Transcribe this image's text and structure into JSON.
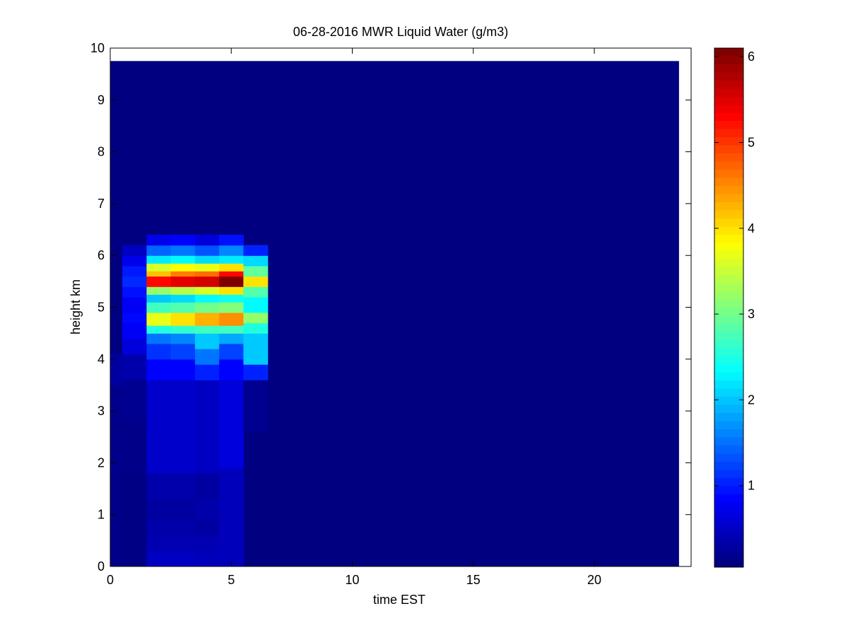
{
  "chart_data": {
    "type": "heatmap",
    "title": "06-28-2016 MWR Liquid Water (g/m3)",
    "xlabel": "time EST",
    "ylabel": "height km",
    "xlim": [
      0,
      24
    ],
    "ylim": [
      0,
      10
    ],
    "x_ticks": [
      0,
      5,
      10,
      15,
      20
    ],
    "y_ticks": [
      0,
      1,
      2,
      3,
      4,
      5,
      6,
      7,
      8,
      9,
      10
    ],
    "colormap": "jet",
    "colorbar": {
      "clim": [
        0.05,
        6.1
      ],
      "ticks": [
        1,
        2,
        3,
        4,
        5,
        6
      ]
    },
    "background_value": 0.05,
    "data_extent": {
      "x": [
        0,
        23.5
      ],
      "y": [
        0,
        9.75
      ]
    },
    "columns": [
      {
        "x": [
          0,
          0.5
        ],
        "cells": [
          {
            "y": [
              0,
              1.8
            ],
            "v": 0.1
          },
          {
            "y": [
              1.8,
              3.5
            ],
            "v": 0.12
          },
          {
            "y": [
              3.5,
              4.1
            ],
            "v": 0.25
          }
        ]
      },
      {
        "x": [
          0.5,
          1.5
        ],
        "cells": [
          {
            "y": [
              0,
              1.8
            ],
            "v": 0.08
          },
          {
            "y": [
              1.8,
              2.8
            ],
            "v": 0.1
          },
          {
            "y": [
              2.8,
              3.6
            ],
            "v": 0.15
          },
          {
            "y": [
              3.6,
              4.1
            ],
            "v": 0.3
          },
          {
            "y": [
              4.1,
              4.4
            ],
            "v": 0.6
          },
          {
            "y": [
              4.4,
              4.7
            ],
            "v": 0.75
          },
          {
            "y": [
              4.7,
              4.9
            ],
            "v": 0.85
          },
          {
            "y": [
              4.9,
              5.2
            ],
            "v": 0.75
          },
          {
            "y": [
              5.2,
              5.4
            ],
            "v": 0.9
          },
          {
            "y": [
              5.4,
              5.6
            ],
            "v": 1.05
          },
          {
            "y": [
              5.6,
              5.8
            ],
            "v": 0.95
          },
          {
            "y": [
              5.8,
              6.0
            ],
            "v": 0.7
          },
          {
            "y": [
              6.0,
              6.2
            ],
            "v": 0.45
          }
        ]
      },
      {
        "x": [
          1.5,
          2.5
        ],
        "cells": [
          {
            "y": [
              0,
              0.3
            ],
            "v": 0.45
          },
          {
            "y": [
              0.3,
              0.6
            ],
            "v": 0.35
          },
          {
            "y": [
              0.6,
              0.9
            ],
            "v": 0.3
          },
          {
            "y": [
              0.9,
              1.3
            ],
            "v": 0.25
          },
          {
            "y": [
              1.3,
              1.8
            ],
            "v": 0.3
          },
          {
            "y": [
              1.8,
              3.6
            ],
            "v": 0.5
          },
          {
            "y": [
              3.6,
              4.0
            ],
            "v": 0.8
          },
          {
            "y": [
              4.0,
              4.3
            ],
            "v": 1.1
          },
          {
            "y": [
              4.3,
              4.5
            ],
            "v": 1.5
          },
          {
            "y": [
              4.5,
              4.65
            ],
            "v": 2.5
          },
          {
            "y": [
              4.65,
              4.9
            ],
            "v": 3.7
          },
          {
            "y": [
              4.9,
              5.1
            ],
            "v": 2.7
          },
          {
            "y": [
              5.1,
              5.25
            ],
            "v": 2.0
          },
          {
            "y": [
              5.25,
              5.4
            ],
            "v": 3.2
          },
          {
            "y": [
              5.4,
              5.6
            ],
            "v": 5.3
          },
          {
            "y": [
              5.6,
              5.7
            ],
            "v": 4.2
          },
          {
            "y": [
              5.7,
              5.85
            ],
            "v": 3.6
          },
          {
            "y": [
              5.85,
              6.0
            ],
            "v": 2.2
          },
          {
            "y": [
              6.0,
              6.2
            ],
            "v": 1.4
          },
          {
            "y": [
              6.2,
              6.4
            ],
            "v": 0.7
          }
        ]
      },
      {
        "x": [
          2.5,
          3.5
        ],
        "cells": [
          {
            "y": [
              0,
              0.3
            ],
            "v": 0.45
          },
          {
            "y": [
              0.3,
              0.6
            ],
            "v": 0.35
          },
          {
            "y": [
              0.6,
              0.9
            ],
            "v": 0.3
          },
          {
            "y": [
              0.9,
              1.3
            ],
            "v": 0.25
          },
          {
            "y": [
              1.3,
              1.8
            ],
            "v": 0.3
          },
          {
            "y": [
              1.8,
              3.6
            ],
            "v": 0.5
          },
          {
            "y": [
              3.6,
              4.0
            ],
            "v": 0.8
          },
          {
            "y": [
              4.0,
              4.3
            ],
            "v": 1.2
          },
          {
            "y": [
              4.3,
              4.5
            ],
            "v": 1.6
          },
          {
            "y": [
              4.5,
              4.65
            ],
            "v": 2.6
          },
          {
            "y": [
              4.65,
              4.9
            ],
            "v": 4.0
          },
          {
            "y": [
              4.9,
              5.1
            ],
            "v": 2.8
          },
          {
            "y": [
              5.1,
              5.25
            ],
            "v": 2.1
          },
          {
            "y": [
              5.25,
              5.4
            ],
            "v": 3.4
          },
          {
            "y": [
              5.4,
              5.6
            ],
            "v": 5.5
          },
          {
            "y": [
              5.6,
              5.7
            ],
            "v": 4.6
          },
          {
            "y": [
              5.7,
              5.85
            ],
            "v": 3.8
          },
          {
            "y": [
              5.85,
              6.0
            ],
            "v": 2.3
          },
          {
            "y": [
              6.0,
              6.2
            ],
            "v": 1.5
          },
          {
            "y": [
              6.2,
              6.4
            ],
            "v": 0.8
          }
        ]
      },
      {
        "x": [
          3.5,
          4.5
        ],
        "cells": [
          {
            "y": [
              0,
              0.3
            ],
            "v": 0.4
          },
          {
            "y": [
              0.3,
              0.6
            ],
            "v": 0.35
          },
          {
            "y": [
              0.6,
              0.9
            ],
            "v": 0.25
          },
          {
            "y": [
              0.9,
              1.3
            ],
            "v": 0.3
          },
          {
            "y": [
              1.3,
              1.8
            ],
            "v": 0.25
          },
          {
            "y": [
              1.8,
              3.6
            ],
            "v": 0.45
          },
          {
            "y": [
              3.6,
              3.9
            ],
            "v": 1.0
          },
          {
            "y": [
              3.9,
              4.2
            ],
            "v": 1.5
          },
          {
            "y": [
              4.2,
              4.5
            ],
            "v": 2.0
          },
          {
            "y": [
              4.5,
              4.65
            ],
            "v": 2.7
          },
          {
            "y": [
              4.65,
              4.9
            ],
            "v": 4.3
          },
          {
            "y": [
              4.9,
              5.1
            ],
            "v": 3.0
          },
          {
            "y": [
              5.1,
              5.25
            ],
            "v": 2.3
          },
          {
            "y": [
              5.25,
              5.4
            ],
            "v": 3.6
          },
          {
            "y": [
              5.4,
              5.6
            ],
            "v": 5.6
          },
          {
            "y": [
              5.6,
              5.7
            ],
            "v": 4.7
          },
          {
            "y": [
              5.7,
              5.85
            ],
            "v": 3.7
          },
          {
            "y": [
              5.85,
              6.0
            ],
            "v": 2.1
          },
          {
            "y": [
              6.0,
              6.2
            ],
            "v": 1.3
          },
          {
            "y": [
              6.2,
              6.4
            ],
            "v": 0.6
          }
        ]
      },
      {
        "x": [
          4.5,
          5.5
        ],
        "cells": [
          {
            "y": [
              0,
              1.9
            ],
            "v": 0.4
          },
          {
            "y": [
              1.9,
              3.6
            ],
            "v": 0.6
          },
          {
            "y": [
              3.6,
              4.0
            ],
            "v": 0.8
          },
          {
            "y": [
              4.0,
              4.3
            ],
            "v": 1.2
          },
          {
            "y": [
              4.3,
              4.5
            ],
            "v": 1.8
          },
          {
            "y": [
              4.5,
              4.65
            ],
            "v": 2.7
          },
          {
            "y": [
              4.65,
              4.9
            ],
            "v": 4.5
          },
          {
            "y": [
              4.9,
              5.1
            ],
            "v": 3.1
          },
          {
            "y": [
              5.1,
              5.25
            ],
            "v": 2.4
          },
          {
            "y": [
              5.25,
              5.4
            ],
            "v": 4.0
          },
          {
            "y": [
              5.4,
              5.6
            ],
            "v": 6.1
          },
          {
            "y": [
              5.6,
              5.7
            ],
            "v": 5.3
          },
          {
            "y": [
              5.7,
              5.85
            ],
            "v": 4.0
          },
          {
            "y": [
              5.85,
              6.0
            ],
            "v": 2.2
          },
          {
            "y": [
              6.0,
              6.2
            ],
            "v": 1.6
          },
          {
            "y": [
              6.2,
              6.4
            ],
            "v": 0.9
          }
        ]
      },
      {
        "x": [
          5.5,
          6.5
        ],
        "cells": [
          {
            "y": [
              2.6,
              3.6
            ],
            "v": 0.15
          },
          {
            "y": [
              3.6,
              3.9
            ],
            "v": 1.0
          },
          {
            "y": [
              3.9,
              4.5
            ],
            "v": 2.0
          },
          {
            "y": [
              4.5,
              4.7
            ],
            "v": 2.5
          },
          {
            "y": [
              4.7,
              4.9
            ],
            "v": 3.2
          },
          {
            "y": [
              4.9,
              5.2
            ],
            "v": 2.3
          },
          {
            "y": [
              5.2,
              5.4
            ],
            "v": 2.8
          },
          {
            "y": [
              5.4,
              5.6
            ],
            "v": 4.0
          },
          {
            "y": [
              5.6,
              5.8
            ],
            "v": 2.9
          },
          {
            "y": [
              5.8,
              6.0
            ],
            "v": 2.1
          },
          {
            "y": [
              6.0,
              6.2
            ],
            "v": 1.0
          }
        ]
      }
    ]
  }
}
